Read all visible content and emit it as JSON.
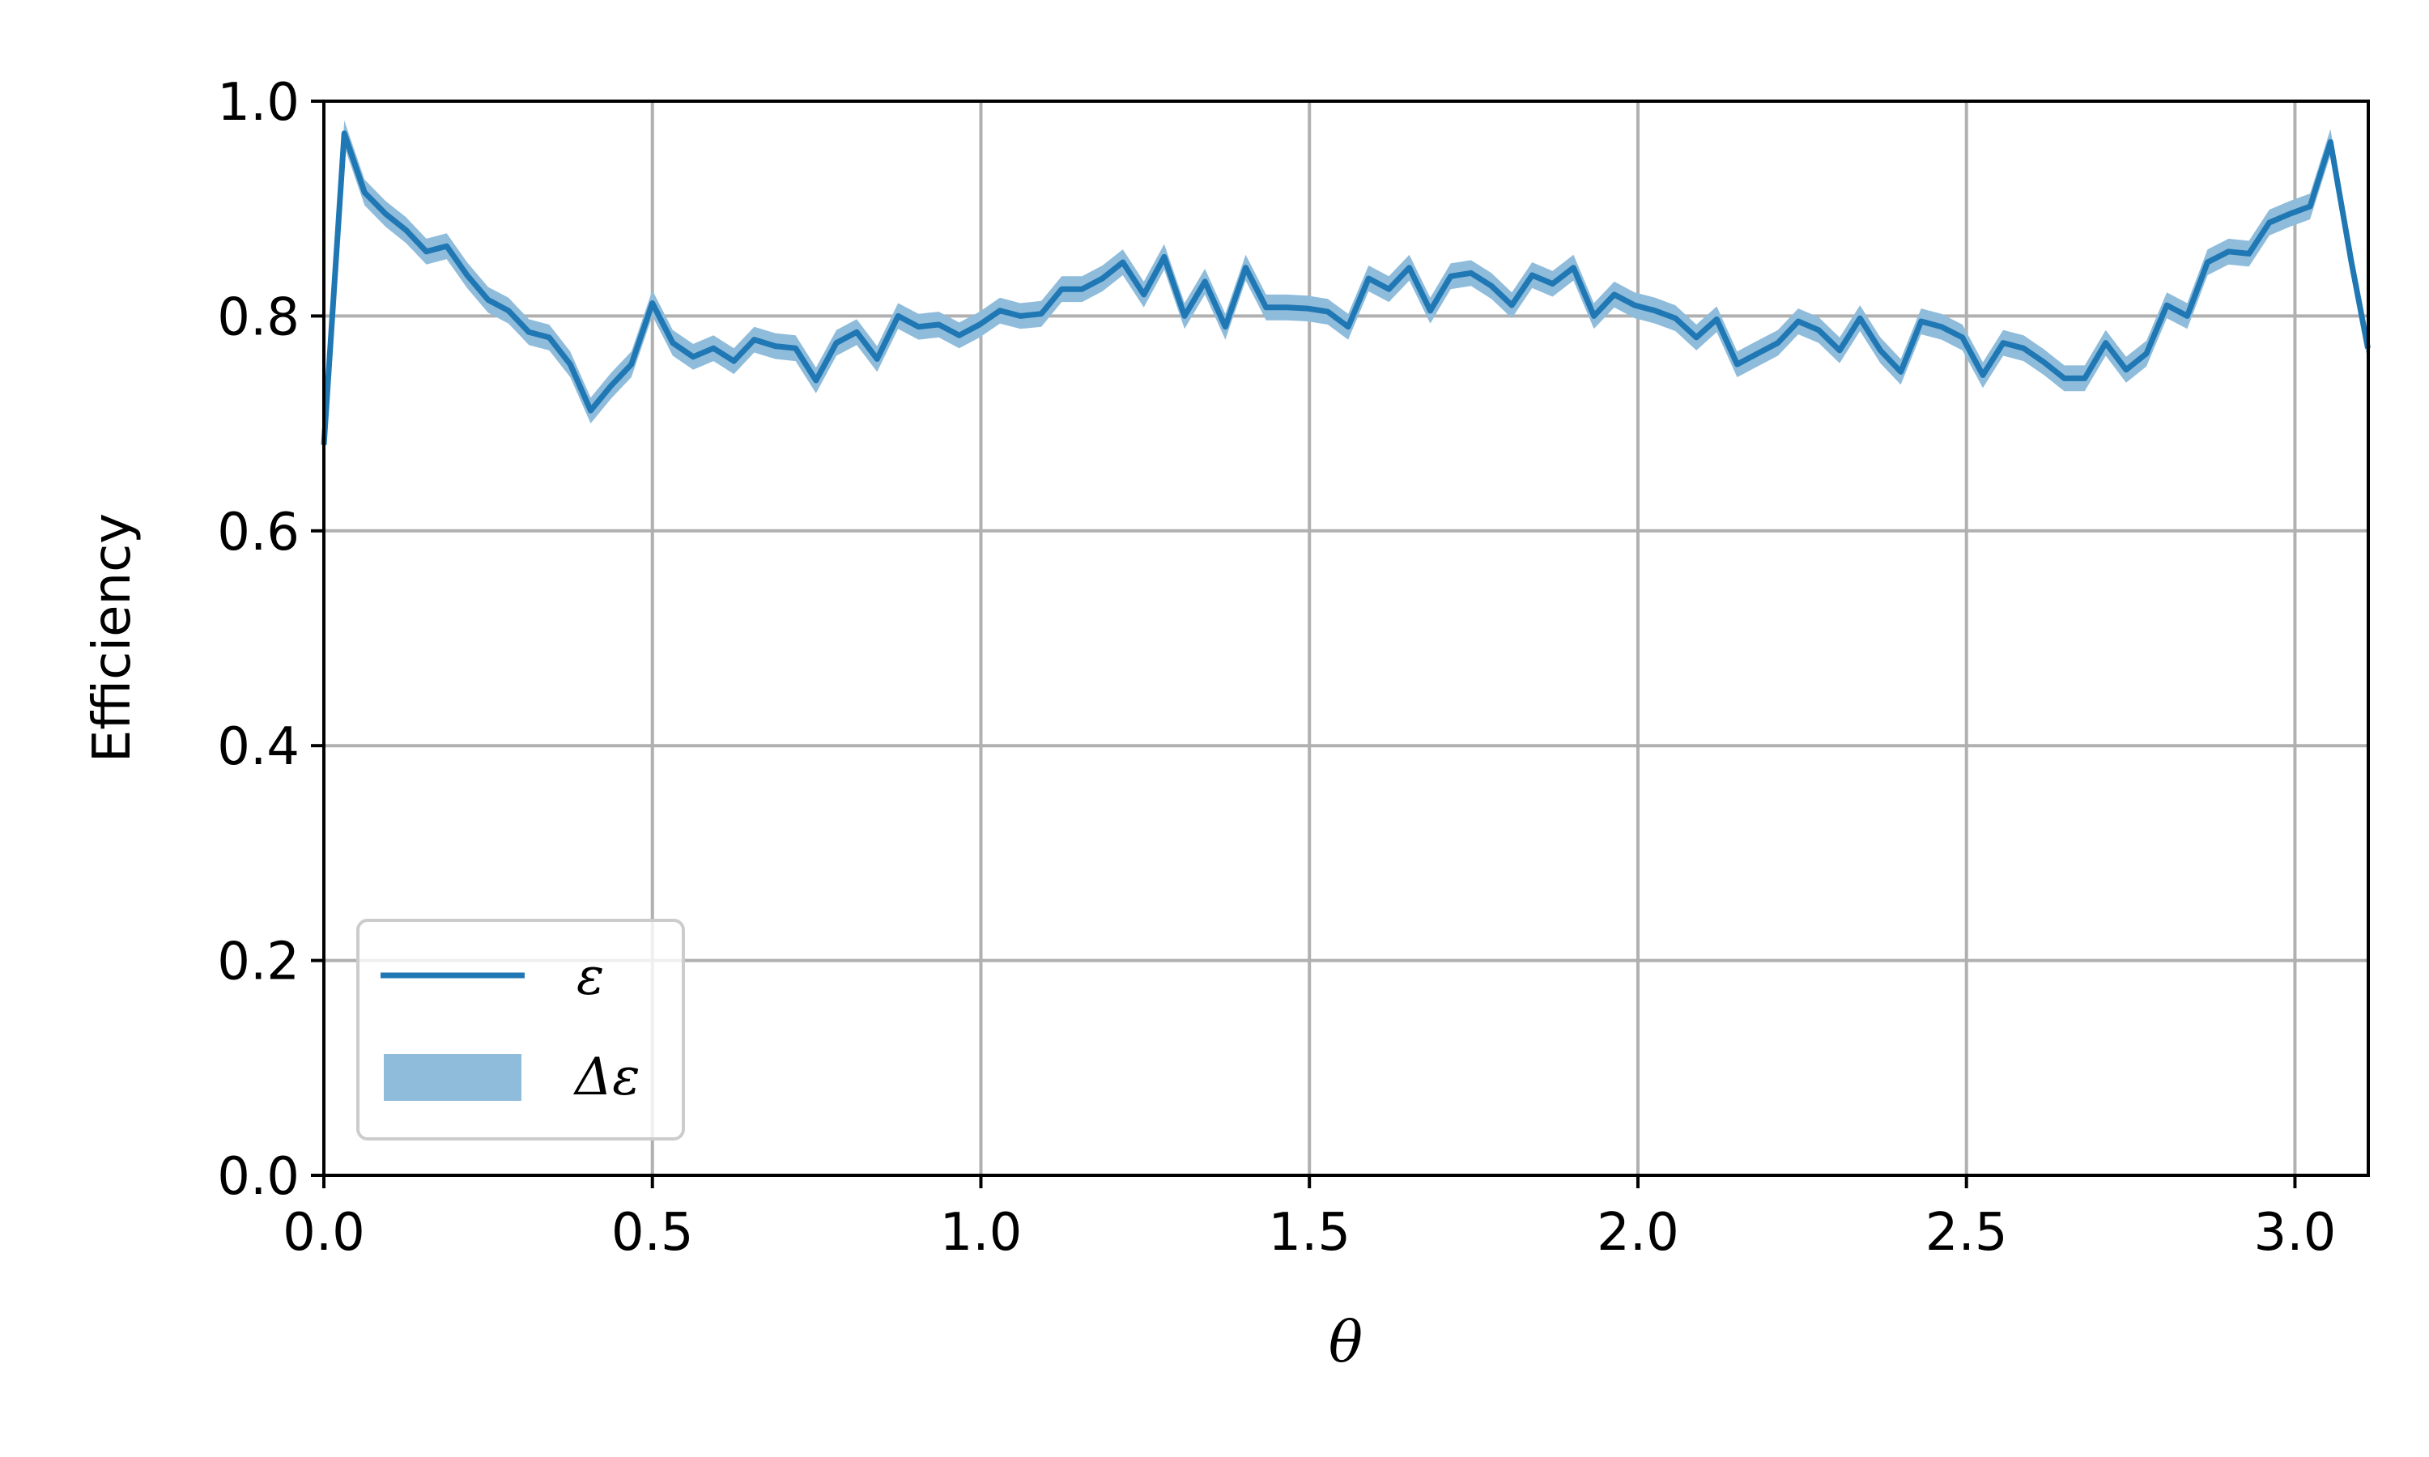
{
  "chart_data": {
    "type": "line",
    "title": "",
    "xlabel": "θ",
    "ylabel": "Efficiency",
    "xlim": [
      0.0,
      3.1116
    ],
    "ylim": [
      0.0,
      1.0
    ],
    "xticks": [
      "0.0",
      "0.5",
      "1.0",
      "1.5",
      "2.0",
      "2.5",
      "3.0"
    ],
    "yticks": [
      "0.0",
      "0.2",
      "0.4",
      "0.6",
      "0.8",
      "1.0"
    ],
    "grid": true,
    "legend_position": "lower-left",
    "colors": {
      "line": "#1f77b4",
      "band": "#8fbcdb",
      "grid": "#b0b0b0"
    },
    "series": [
      {
        "name": "ε",
        "x": [
          0.0,
          0.031,
          0.062,
          0.094,
          0.125,
          0.156,
          0.187,
          0.218,
          0.25,
          0.281,
          0.312,
          0.343,
          0.375,
          0.406,
          0.437,
          0.468,
          0.5,
          0.531,
          0.562,
          0.593,
          0.624,
          0.655,
          0.687,
          0.718,
          0.749,
          0.78,
          0.811,
          0.842,
          0.874,
          0.905,
          0.936,
          0.967,
          0.998,
          1.029,
          1.06,
          1.092,
          1.123,
          1.154,
          1.185,
          1.216,
          1.248,
          1.279,
          1.31,
          1.341,
          1.372,
          1.403,
          1.434,
          1.466,
          1.497,
          1.528,
          1.559,
          1.59,
          1.621,
          1.652,
          1.684,
          1.715,
          1.746,
          1.777,
          1.808,
          1.839,
          1.87,
          1.902,
          1.933,
          1.964,
          1.995,
          2.026,
          2.057,
          2.089,
          2.12,
          2.151,
          2.182,
          2.213,
          2.244,
          2.275,
          2.307,
          2.338,
          2.369,
          2.4,
          2.431,
          2.462,
          2.494,
          2.525,
          2.556,
          2.587,
          2.618,
          2.649,
          2.68,
          2.712,
          2.743,
          2.774,
          2.805,
          2.836,
          2.867,
          2.899,
          2.93,
          2.961,
          2.992,
          3.023,
          3.054,
          3.086,
          3.111
        ],
        "y": [
          0.68,
          0.97,
          0.915,
          0.895,
          0.88,
          0.86,
          0.865,
          0.838,
          0.815,
          0.805,
          0.785,
          0.78,
          0.755,
          0.712,
          0.735,
          0.755,
          0.812,
          0.775,
          0.762,
          0.77,
          0.758,
          0.778,
          0.772,
          0.77,
          0.74,
          0.775,
          0.785,
          0.76,
          0.8,
          0.79,
          0.792,
          0.782,
          0.792,
          0.805,
          0.8,
          0.802,
          0.825,
          0.825,
          0.835,
          0.85,
          0.82,
          0.855,
          0.8,
          0.832,
          0.79,
          0.845,
          0.808,
          0.808,
          0.807,
          0.804,
          0.79,
          0.835,
          0.825,
          0.845,
          0.805,
          0.837,
          0.84,
          0.828,
          0.81,
          0.838,
          0.83,
          0.845,
          0.8,
          0.82,
          0.81,
          0.805,
          0.798,
          0.78,
          0.797,
          0.755,
          0.765,
          0.775,
          0.795,
          0.787,
          0.768,
          0.798,
          0.768,
          0.748,
          0.795,
          0.79,
          0.78,
          0.745,
          0.775,
          0.77,
          0.757,
          0.742,
          0.742,
          0.775,
          0.75,
          0.765,
          0.81,
          0.8,
          0.85,
          0.86,
          0.858,
          0.887,
          0.895,
          0.902,
          0.962,
          0.85,
          0.77
        ]
      }
    ],
    "band": {
      "name": "Δε",
      "halfwidth": 0.012
    }
  }
}
